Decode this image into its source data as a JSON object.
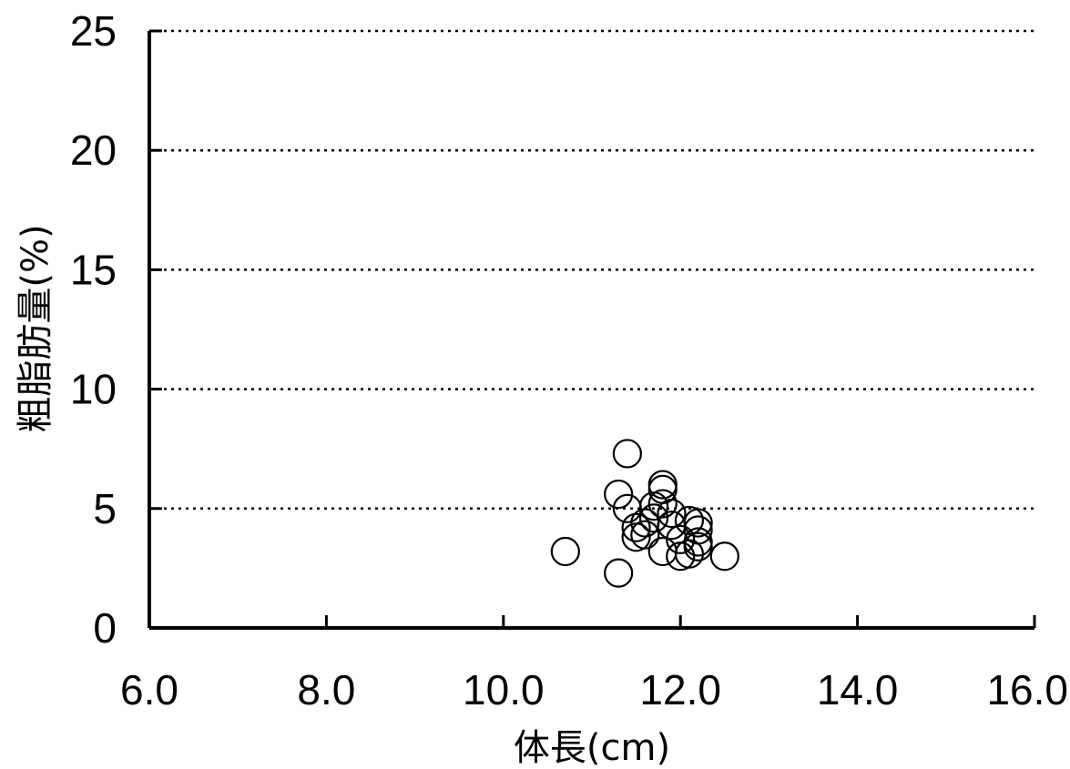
{
  "chart_data": {
    "type": "scatter",
    "xlabel": "体長(cm)",
    "ylabel": "粗脂肪量(%)",
    "xlim": [
      6.0,
      16.0
    ],
    "ylim": [
      0,
      25
    ],
    "x_ticks": [
      "6.0",
      "8.0",
      "10.0",
      "12.0",
      "14.0",
      "16.0"
    ],
    "y_ticks": [
      "0",
      "5",
      "10",
      "15",
      "20",
      "25"
    ],
    "grid": "horizontal dotted",
    "marker": "open circle",
    "series": [
      {
        "points": [
          {
            "x": 10.7,
            "y": 3.2
          },
          {
            "x": 11.3,
            "y": 2.3
          },
          {
            "x": 11.3,
            "y": 5.6
          },
          {
            "x": 11.4,
            "y": 7.3
          },
          {
            "x": 11.4,
            "y": 5.0
          },
          {
            "x": 11.5,
            "y": 4.2
          },
          {
            "x": 11.5,
            "y": 3.8
          },
          {
            "x": 11.6,
            "y": 4.4
          },
          {
            "x": 11.6,
            "y": 3.9
          },
          {
            "x": 11.7,
            "y": 5.1
          },
          {
            "x": 11.7,
            "y": 4.6
          },
          {
            "x": 11.8,
            "y": 6.0
          },
          {
            "x": 11.8,
            "y": 5.8
          },
          {
            "x": 11.8,
            "y": 5.2
          },
          {
            "x": 11.8,
            "y": 3.2
          },
          {
            "x": 11.9,
            "y": 4.8
          },
          {
            "x": 11.9,
            "y": 4.3
          },
          {
            "x": 12.0,
            "y": 3.7
          },
          {
            "x": 12.0,
            "y": 3.0
          },
          {
            "x": 12.1,
            "y": 4.5
          },
          {
            "x": 12.1,
            "y": 3.1
          },
          {
            "x": 12.2,
            "y": 4.4
          },
          {
            "x": 12.2,
            "y": 4.1
          },
          {
            "x": 12.2,
            "y": 3.6
          },
          {
            "x": 12.2,
            "y": 3.4
          },
          {
            "x": 12.5,
            "y": 3.0
          }
        ]
      }
    ]
  }
}
